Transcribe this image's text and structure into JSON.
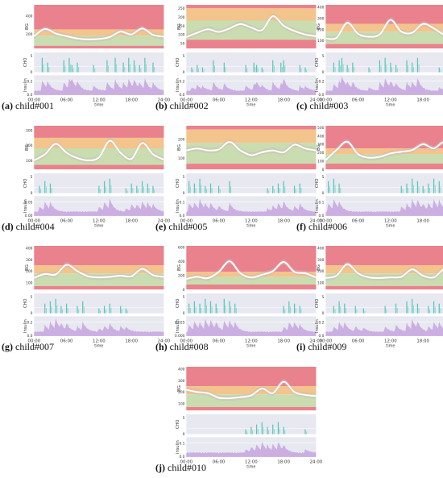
{
  "figure": {
    "colors": {
      "hyper_severe": "#e9828c",
      "hyper": "#f3c48b",
      "normal": "#c9ddb0",
      "hypo": "#e9828c",
      "panel_bg": "#e8e8f1",
      "bg_mean": "#ffffff",
      "bg_band": "#c9b9b9",
      "cho": "#52c9b8",
      "insulin": "#c7a5df"
    },
    "x_ticks": [
      "00:00",
      "06:00",
      "12:00",
      "18:00",
      "24:00"
    ],
    "x_label": "time",
    "y_labels": {
      "bg": "BG",
      "cho": "CHO",
      "insulin": "Insulin"
    }
  },
  "chart_data": [
    {
      "type": "line",
      "tag": "(a)",
      "name": "child#001",
      "bg_ylim": [
        40,
        520
      ],
      "bg_ticks": [
        "400",
        "200"
      ],
      "cho_ticks": [
        "5",
        "0"
      ],
      "ins_ticks": [
        "0.2",
        "0.0"
      ],
      "ins_max": 0.25,
      "bg_x": [
        0,
        2,
        4,
        6,
        8,
        10,
        12,
        14,
        16,
        18,
        20,
        22,
        24
      ],
      "bg_y": [
        175,
        255,
        205,
        175,
        150,
        140,
        145,
        165,
        225,
        195,
        260,
        190,
        170
      ],
      "cho_x": [
        1.5,
        2.5,
        5.5,
        6.5,
        7,
        8,
        11,
        13.5,
        15,
        16.5,
        17.5,
        18.5,
        19.5,
        20.5,
        22
      ],
      "cho_y": [
        6,
        4,
        5,
        6,
        3,
        4,
        3,
        5,
        6,
        4,
        6,
        5,
        3,
        6,
        4
      ]
    },
    {
      "type": "line",
      "tag": "(b)",
      "name": "child#002",
      "bg_ylim": [
        20,
        270
      ],
      "bg_ticks": [
        "250",
        "200",
        "150",
        "100",
        "50"
      ],
      "cho_ticks": [
        "5",
        "0"
      ],
      "ins_ticks": [
        "0.2",
        "0.0"
      ],
      "ins_max": 0.25,
      "bg_x": [
        0,
        2,
        4,
        6,
        8,
        10,
        12,
        14,
        16,
        18,
        20,
        22,
        24
      ],
      "bg_y": [
        85,
        110,
        130,
        115,
        135,
        160,
        140,
        125,
        205,
        150,
        120,
        100,
        90
      ],
      "cho_x": [
        1,
        2,
        3,
        5,
        7,
        11,
        12.5,
        13,
        14,
        16,
        17.5,
        18,
        21,
        22
      ],
      "cho_y": [
        2,
        3,
        2,
        5,
        4,
        3,
        4,
        3,
        2,
        5,
        4,
        5,
        3,
        2
      ]
    },
    {
      "type": "line",
      "tag": "(c)",
      "name": "child#003",
      "bg_ylim": [
        30,
        420
      ],
      "bg_ticks": [
        "400",
        "300",
        "200",
        "100"
      ],
      "cho_ticks": [
        "5",
        "0"
      ],
      "ins_ticks": [
        "0.2",
        "0.0"
      ],
      "ins_max": 0.25,
      "bg_x": [
        0,
        2,
        4,
        6,
        8,
        10,
        12,
        14,
        16,
        18,
        20,
        22,
        24
      ],
      "bg_y": [
        120,
        125,
        260,
        160,
        135,
        155,
        285,
        180,
        170,
        250,
        210,
        150,
        125
      ],
      "cho_x": [
        1.5,
        2.5,
        3,
        4,
        5,
        8,
        10,
        11,
        12,
        13,
        15,
        16,
        17,
        21
      ],
      "cho_y": [
        4,
        5,
        6,
        3,
        4,
        2,
        5,
        6,
        4,
        3,
        5,
        4,
        6,
        2
      ]
    },
    {
      "type": "line",
      "tag": "(d)",
      "name": "child#004",
      "bg_ylim": [
        40,
        330
      ],
      "bg_ticks": [
        "300",
        "200",
        "100"
      ],
      "cho_ticks": [
        "5",
        "0"
      ],
      "ins_ticks": [
        "0.05",
        "0.00"
      ],
      "ins_max": 0.06,
      "bg_x": [
        0,
        2,
        4,
        6,
        8,
        10,
        12,
        14,
        16,
        18,
        20,
        22,
        24
      ],
      "bg_y": [
        100,
        140,
        210,
        150,
        115,
        100,
        120,
        230,
        150,
        110,
        215,
        140,
        105
      ],
      "cho_x": [
        1,
        2,
        3,
        12,
        13,
        14,
        17,
        18,
        19,
        20,
        21,
        22
      ],
      "cho_y": [
        3,
        5,
        4,
        3,
        5,
        6,
        2,
        4,
        3,
        5,
        4,
        3
      ]
    },
    {
      "type": "line",
      "tag": "(e)",
      "name": "child#005",
      "bg_ylim": [
        40,
        270
      ],
      "bg_ticks": [
        "200",
        "100"
      ],
      "cho_ticks": [
        "5",
        "0"
      ],
      "ins_ticks": [
        "0.1",
        "0.0"
      ],
      "ins_max": 0.12,
      "bg_x": [
        0,
        2,
        4,
        6,
        8,
        10,
        12,
        14,
        16,
        18,
        20,
        22,
        24
      ],
      "bg_y": [
        140,
        150,
        140,
        145,
        185,
        140,
        115,
        130,
        140,
        130,
        170,
        150,
        140
      ],
      "cho_x": [
        0.5,
        1.5,
        2.5,
        3.5,
        4.5,
        6,
        8,
        15,
        16,
        17,
        18,
        20,
        21
      ],
      "cho_y": [
        5,
        4,
        6,
        3,
        4,
        3,
        5,
        2,
        3,
        4,
        5,
        3,
        4
      ]
    },
    {
      "type": "line",
      "tag": "(f)",
      "name": "child#006",
      "bg_ylim": [
        0,
        520
      ],
      "bg_ticks": [
        "500",
        "400",
        "300",
        "200",
        "100",
        "0"
      ],
      "cho_ticks": [
        "5",
        "0"
      ],
      "ins_ticks": [
        "0.1",
        "0.0"
      ],
      "ins_max": 0.12,
      "bg_x": [
        0,
        2,
        4,
        6,
        8,
        10,
        12,
        14,
        16,
        18,
        20,
        22,
        24
      ],
      "bg_y": [
        110,
        230,
        330,
        180,
        140,
        150,
        190,
        210,
        230,
        300,
        250,
        320,
        140
      ],
      "cho_x": [
        0.5,
        1.5,
        2.5,
        14,
        15,
        16,
        17,
        18,
        19,
        20,
        21,
        22,
        23
      ],
      "cho_y": [
        5,
        6,
        4,
        3,
        4,
        6,
        5,
        3,
        4,
        6,
        5,
        3,
        4
      ]
    },
    {
      "type": "line",
      "tag": "(g)",
      "name": "child#007",
      "bg_ylim": [
        40,
        420
      ],
      "bg_ticks": [
        "400",
        "300",
        "200",
        "100"
      ],
      "cho_ticks": [
        "5",
        "0"
      ],
      "ins_ticks": [
        "0.2",
        "0.0"
      ],
      "ins_max": 0.25,
      "bg_x": [
        0,
        2,
        4,
        6,
        8,
        10,
        12,
        14,
        16,
        18,
        20,
        22,
        24
      ],
      "bg_y": [
        140,
        175,
        170,
        255,
        200,
        155,
        145,
        150,
        160,
        155,
        220,
        165,
        150
      ],
      "cho_x": [
        2,
        3,
        4,
        5,
        6,
        8,
        9,
        12,
        13,
        14,
        16,
        17
      ],
      "cho_y": [
        4,
        5,
        6,
        3,
        4,
        3,
        5,
        2,
        3,
        4,
        3,
        2
      ]
    },
    {
      "type": "line",
      "tag": "(h)",
      "name": "child#008",
      "bg_ylim": [
        0,
        620
      ],
      "bg_ticks": [
        "600",
        "400",
        "200",
        "0"
      ],
      "cho_ticks": [
        "5",
        "0"
      ],
      "ins_ticks": [
        "0.025",
        "0.000"
      ],
      "ins_max": 0.03,
      "bg_x": [
        0,
        2,
        4,
        6,
        8,
        10,
        12,
        14,
        16,
        18,
        20,
        22,
        24
      ],
      "bg_y": [
        150,
        180,
        160,
        250,
        400,
        230,
        170,
        210,
        260,
        390,
        250,
        230,
        170
      ],
      "cho_x": [
        0.5,
        1.5,
        2.5,
        3.5,
        4.5,
        5.5,
        7,
        8,
        9,
        18,
        19,
        20,
        21
      ],
      "cho_y": [
        4,
        5,
        4,
        6,
        5,
        4,
        6,
        5,
        4,
        3,
        5,
        4,
        3
      ]
    },
    {
      "type": "line",
      "tag": "(i)",
      "name": "child#009",
      "bg_ylim": [
        40,
        420
      ],
      "bg_ticks": [
        "400",
        "300",
        "200",
        "100"
      ],
      "cho_ticks": [
        "5",
        "0"
      ],
      "ins_ticks": [
        "0.2",
        "0.0"
      ],
      "ins_max": 0.25,
      "bg_x": [
        0,
        2,
        4,
        6,
        8,
        10,
        12,
        14,
        16,
        18,
        20,
        22,
        24
      ],
      "bg_y": [
        140,
        160,
        260,
        180,
        145,
        140,
        145,
        150,
        215,
        160,
        145,
        215,
        150
      ],
      "cho_x": [
        1.5,
        2.5,
        3.5,
        5.5,
        7,
        11,
        13,
        15,
        16,
        17,
        19,
        20,
        21
      ],
      "cho_y": [
        3,
        5,
        4,
        3,
        2,
        3,
        4,
        5,
        6,
        4,
        3,
        5,
        4
      ]
    },
    {
      "type": "line",
      "tag": "(j)",
      "name": "child#010",
      "bg_ylim": [
        40,
        420
      ],
      "bg_ticks": [
        "400",
        "300",
        "200",
        "100"
      ],
      "cho_ticks": [
        "5",
        "0"
      ],
      "ins_ticks": [
        "0.1",
        "0.0"
      ],
      "ins_max": 0.12,
      "bg_x": [
        0,
        2,
        4,
        6,
        8,
        10,
        12,
        14,
        16,
        18,
        20,
        22,
        24
      ],
      "bg_y": [
        220,
        200,
        190,
        150,
        145,
        155,
        170,
        230,
        190,
        290,
        200,
        175,
        165
      ],
      "cho_x": [
        11,
        12,
        13,
        14,
        15,
        16,
        17,
        18,
        22
      ],
      "cho_y": [
        2,
        3,
        4,
        5,
        3,
        4,
        5,
        3,
        2
      ]
    }
  ]
}
